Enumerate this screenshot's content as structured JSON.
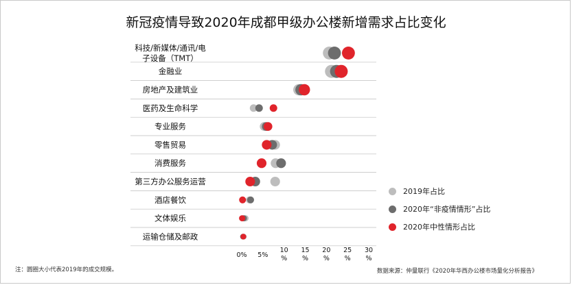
{
  "header": {
    "title": "新冠疫情导致2020年成都甲级办公楼新增需求占比变化"
  },
  "chart_data": {
    "type": "dot",
    "title": "新冠疫情导致2020年成都甲级办公楼新增需求占比变化",
    "xlabel": "",
    "ylabel": "",
    "xlim": [
      0,
      30
    ],
    "x_ticks": [
      "0%",
      "5%",
      "10\n%",
      "15\n%",
      "20\n%",
      "25\n%",
      "30\n%"
    ],
    "x_tick_values": [
      0,
      5,
      10,
      15,
      20,
      25,
      30
    ],
    "categories": [
      "科技/新媒体/通讯/电\n子设备（TMT）",
      "金融业",
      "房地产及建筑业",
      "医药及生命科学",
      "专业服务",
      "零售贸易",
      "消费服务",
      "第三方办公服务运营",
      "酒店餐饮",
      "文体娱乐",
      "运输仓储及邮政"
    ],
    "series": [
      {
        "name": "2019年占比",
        "color": "#bdbdbd",
        "values": [
          20.7,
          21.2,
          13.5,
          2.8,
          5.3,
          7.9,
          8.0,
          7.9,
          1.8,
          0.9,
          0.5
        ]
      },
      {
        "name": "2020年“非疫情情形”占比",
        "color": "#6d6d6d",
        "values": [
          21.9,
          22.4,
          14.0,
          4.1,
          5.8,
          7.2,
          9.3,
          3.2,
          2.1,
          0.5,
          0.3
        ]
      },
      {
        "name": "2020年中性情形占比",
        "color": "#e0242b",
        "values": [
          25.2,
          23.5,
          14.8,
          7.5,
          6.2,
          5.9,
          4.7,
          2.0,
          0.2,
          0.1,
          0.4
        ]
      }
    ],
    "size_note": "圆圈大小代表2019年的成交规模。",
    "legend_position": "right"
  },
  "legend": [
    {
      "label": "2019年占比",
      "color": "#bdbdbd"
    },
    {
      "label": "2020年“非疫情情形”占比",
      "color": "#6d6d6d"
    },
    {
      "label": "2020年中性情形占比",
      "color": "#e0242b"
    }
  ],
  "footer": {
    "note": "注：圆圈大小代表2019年的成交规模。",
    "source": "数据来源：仲量联行《2020年华西办公楼市场量化分析报告》"
  }
}
